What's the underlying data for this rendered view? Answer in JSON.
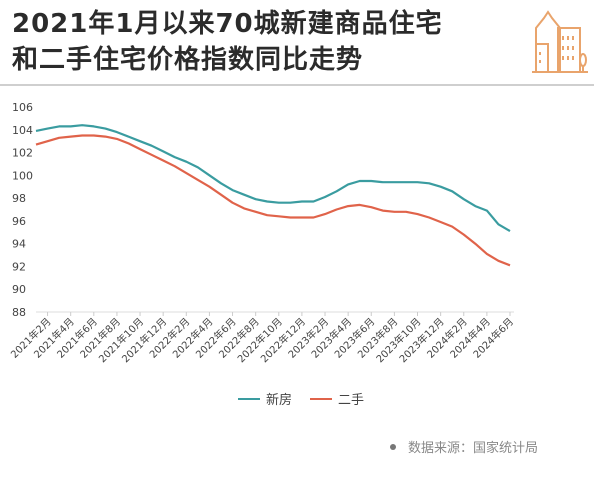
{
  "header": {
    "title_line1": "2021年1月以来70城新建商品住宅",
    "title_line2": "和二手住宅价格指数同比走势",
    "logo_icon": "city-buildings-icon",
    "logo_color": "#e9a46c"
  },
  "footer": {
    "source": "数据来源：国家统计局"
  },
  "chart_data": {
    "type": "line",
    "title": "2021年1月以来70城新建商品住宅和二手住宅价格指数同比走势",
    "xlabel": "",
    "ylabel": "",
    "ylim": [
      88,
      106
    ],
    "yticks": [
      106,
      104,
      102,
      100,
      98,
      96,
      94,
      92,
      90,
      88
    ],
    "x_start": "2021年1月",
    "x_end": "2024年6月",
    "xtick_labels": [
      "2021年2月",
      "2021年4月",
      "2021年6月",
      "2021年8月",
      "2021年10月",
      "2021年12月",
      "2022年2月",
      "2022年4月",
      "2022年6月",
      "2022年8月",
      "2022年10月",
      "2022年12月",
      "2023年2月",
      "2023年4月",
      "2023年6月",
      "2023年8月",
      "2023年10月",
      "2023年12月",
      "2024年2月",
      "2024年4月",
      "2024年6月"
    ],
    "legend": "bottom",
    "grid": false,
    "series": [
      {
        "name": "新房",
        "color": "#3a9ca0",
        "values": [
          103.9,
          104.1,
          104.3,
          104.3,
          104.4,
          104.3,
          104.1,
          103.8,
          103.4,
          103.0,
          102.6,
          102.1,
          101.6,
          101.2,
          100.7,
          100.0,
          99.3,
          98.7,
          98.3,
          97.9,
          97.7,
          97.6,
          97.6,
          97.7,
          97.7,
          98.1,
          98.6,
          99.2,
          99.5,
          99.5,
          99.4,
          99.4,
          99.4,
          99.4,
          99.3,
          99.0,
          98.6,
          97.9,
          97.3,
          96.9,
          95.7,
          95.1
        ]
      },
      {
        "name": "二手",
        "color": "#e0634a",
        "values": [
          102.7,
          103.0,
          103.3,
          103.4,
          103.5,
          103.5,
          103.4,
          103.2,
          102.8,
          102.3,
          101.8,
          101.3,
          100.8,
          100.2,
          99.6,
          99.0,
          98.3,
          97.6,
          97.1,
          96.8,
          96.5,
          96.4,
          96.3,
          96.3,
          96.3,
          96.6,
          97.0,
          97.3,
          97.4,
          97.2,
          96.9,
          96.8,
          96.8,
          96.6,
          96.3,
          95.9,
          95.5,
          94.8,
          94.0,
          93.1,
          92.5,
          92.1
        ]
      }
    ]
  }
}
